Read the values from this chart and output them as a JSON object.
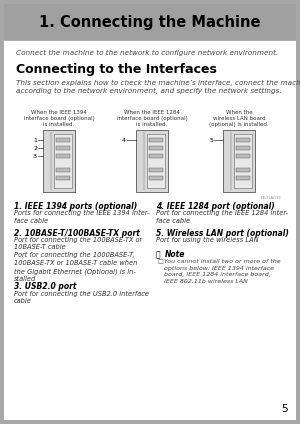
{
  "bg_outer_color": "#a8a8a8",
  "header_bg": "#a0a0a0",
  "page_bg": "#ffffff",
  "header_title": "1. Connecting the Machine",
  "intro_text": "Connect the machine to the network to configure network environment.",
  "section_title": "Connecting to the Interfaces",
  "section_desc": "This section explains how to check the machine’s interface, connect the machine\naccording to the network environment, and specify the network settings.",
  "diag_cap0": "When the IEEE 1394\ninterface board (optional)\nis installed.",
  "diag_cap1": "When the IEEE 1284\ninterface board (optional)\nis installed.",
  "diag_cap2": "When the\nwireless LAN board\n(optional) is installed.",
  "items": [
    {
      "title": "1. IEEE 1394 ports (optional)",
      "body": "Ports for connecting the IEEE 1394 inter-\nface cable",
      "col": "left"
    },
    {
      "title": "2. 10BASE-T/100BASE-TX port",
      "body": "Port for connecting the 100BASE-TX or\n10BASE-T cable\nPort for connecting the 1000BASE-T,\n100BASE-TX or 10BASE-T cable when\nthe Gigabit Ethernet (Optional) is in-\nstalled",
      "col": "left"
    },
    {
      "title": "3. USB2.0 port",
      "body": "Port for connecting the USB2.0 interface\ncable",
      "col": "left"
    },
    {
      "title": "4. IEEE 1284 port (optional)",
      "body": "Port for connecting the IEEE 1284 inter-\nface cable",
      "col": "right"
    },
    {
      "title": "5. Wireless LAN port (optional)",
      "body": "Port for using the wireless LAN",
      "col": "right"
    }
  ],
  "note_title": "Note",
  "note_body": "You cannot install two or more of the\noptions below: IEEE 1394 interface\nboard, IEEE 1284 interface board,\nIEEE 802.11b wireless LAN",
  "page_num": "5"
}
